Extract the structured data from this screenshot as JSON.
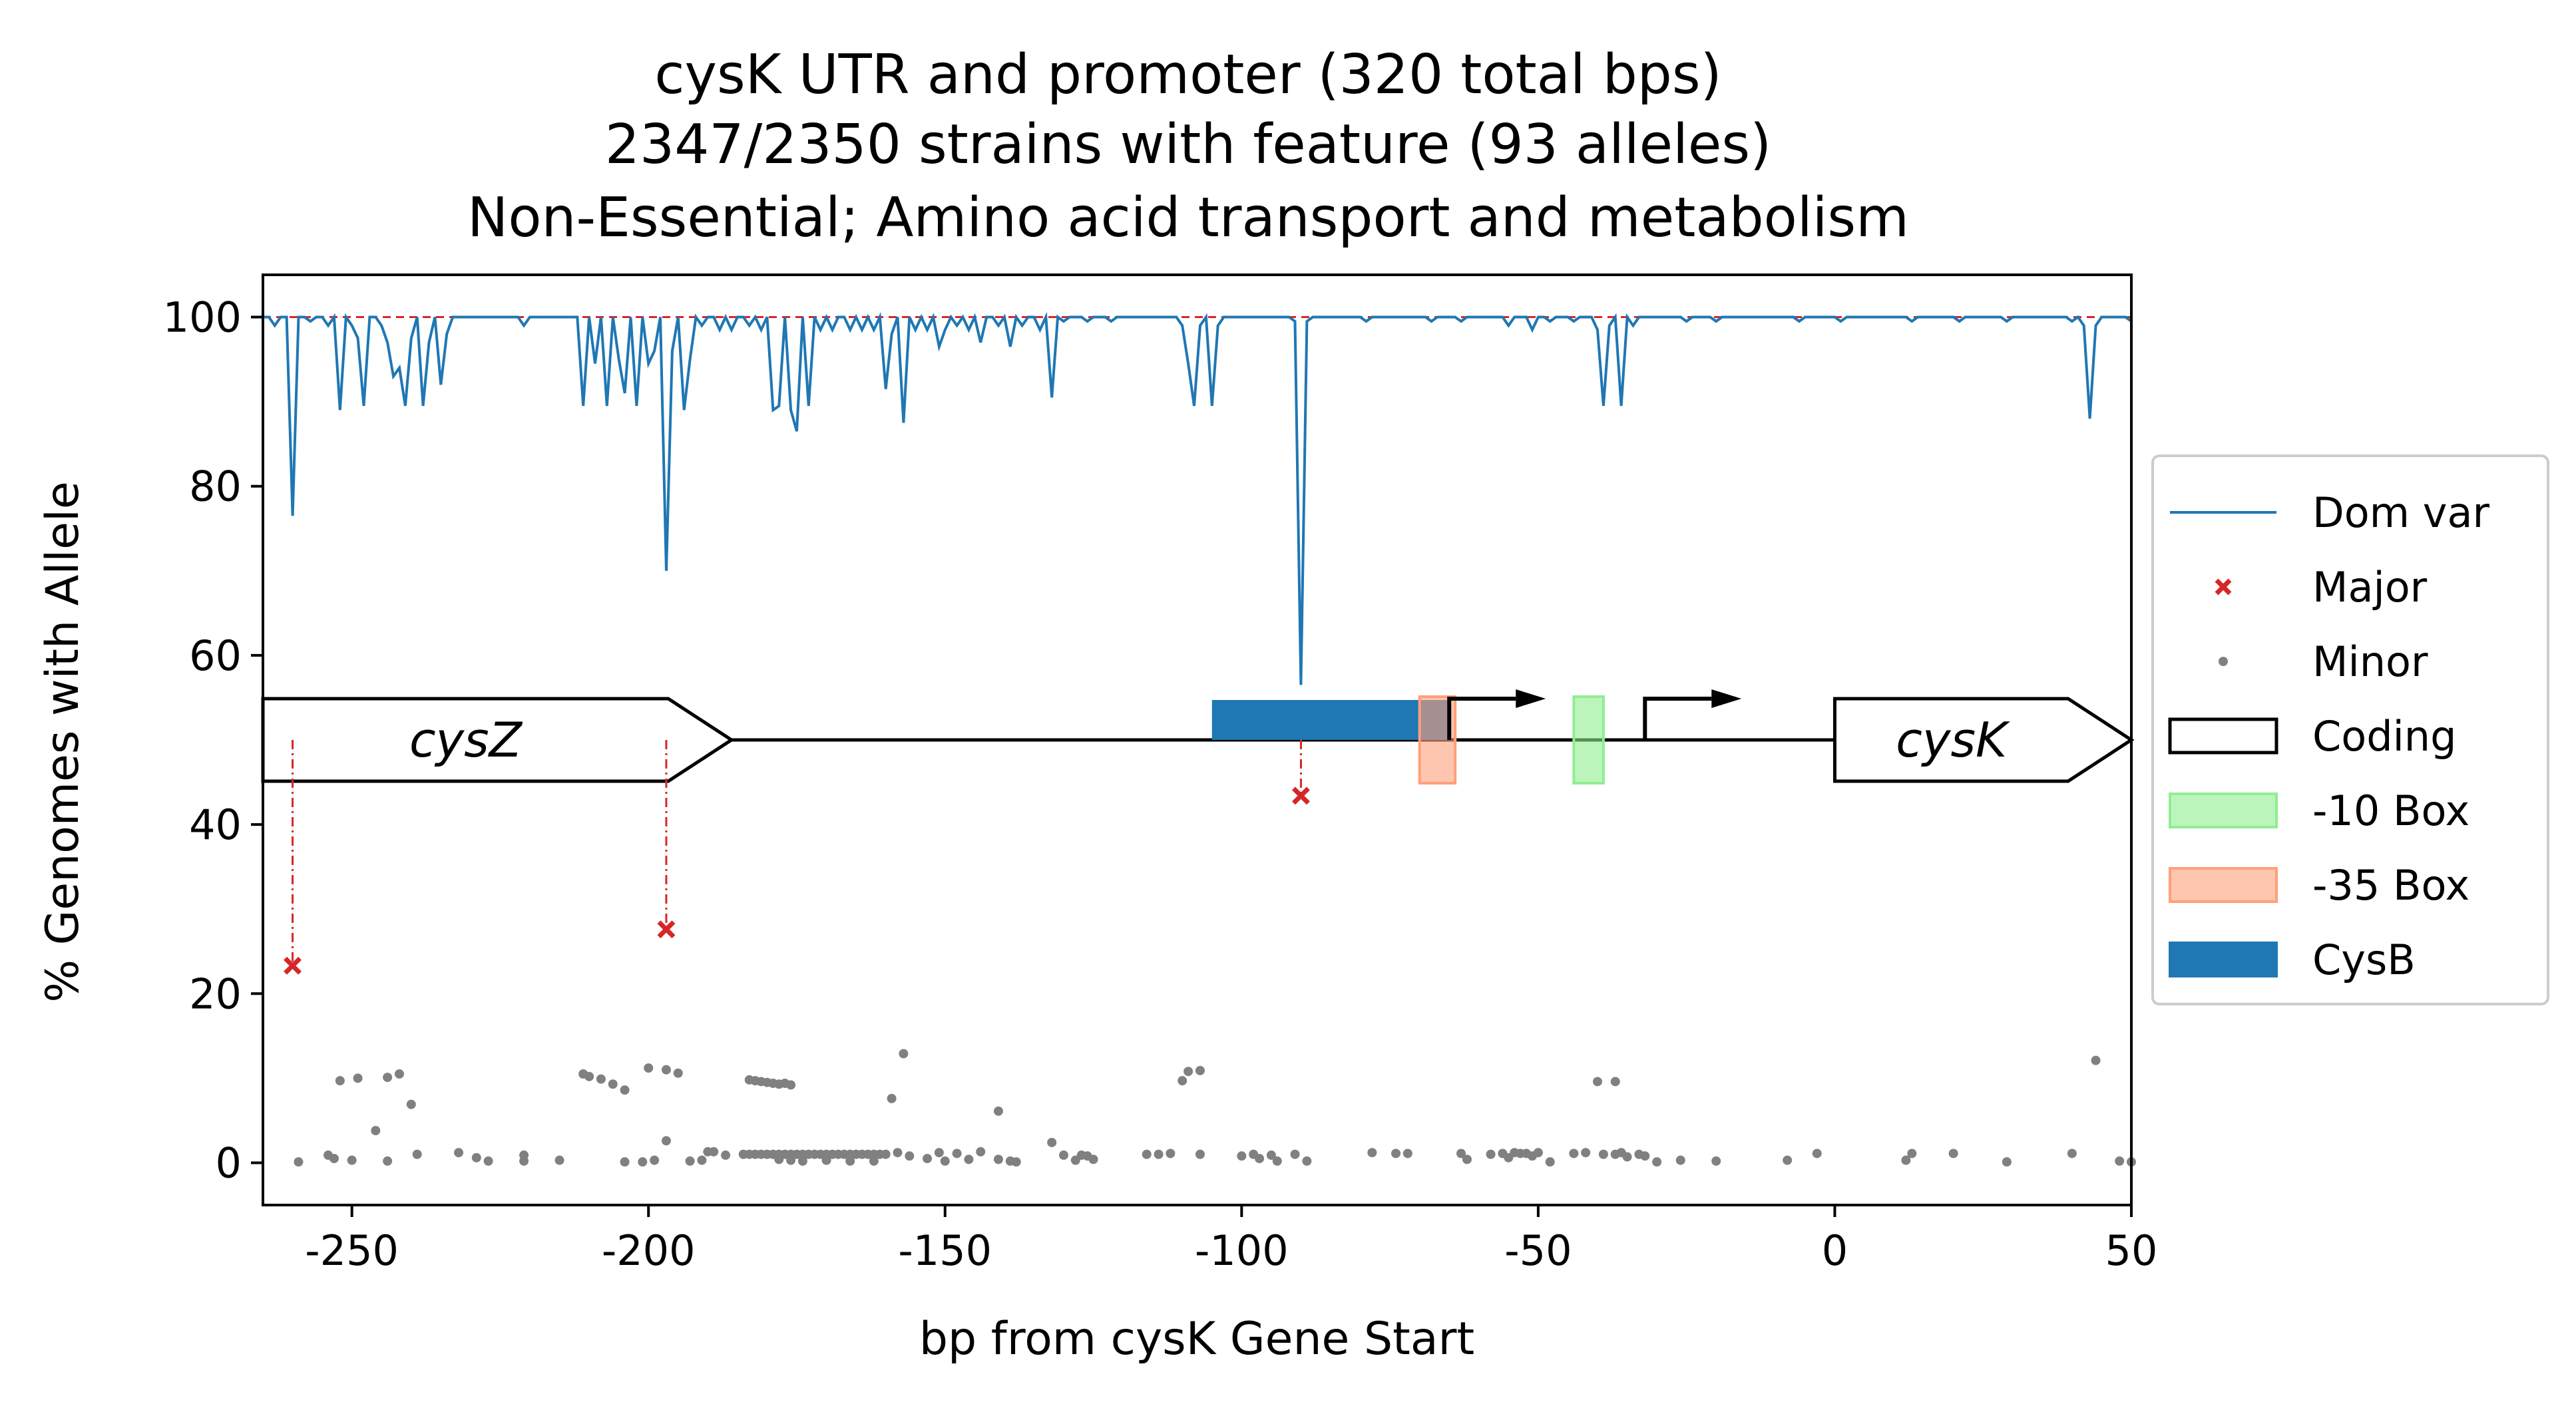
{
  "chart_data": {
    "type": "line",
    "title_lines": [
      "cysK UTR and promoter (320 total bps)",
      "2347/2350 strains with feature (93 alleles)",
      "Non-Essential; Amino acid transport and metabolism"
    ],
    "xlabel": "bp from cysK Gene Start",
    "ylabel": "% Genomes with Allele",
    "xlim": [
      -265,
      50
    ],
    "ylim": [
      -5,
      105
    ],
    "xticks": [
      -250,
      -200,
      -150,
      -100,
      -50,
      0,
      50
    ],
    "yticks": [
      0,
      20,
      40,
      60,
      80,
      100
    ],
    "grid": false,
    "legend": {
      "position": "right",
      "items": [
        {
          "label": "Dom var",
          "kind": "line",
          "color": "#1f77b4"
        },
        {
          "label": "Major",
          "kind": "x-marker",
          "color": "#d62728"
        },
        {
          "label": "Minor",
          "kind": "dot",
          "color": "#808080"
        },
        {
          "label": "Coding",
          "kind": "box",
          "color": "#000000"
        },
        {
          "label": "-10 Box",
          "kind": "patch",
          "color": "#90ee90"
        },
        {
          "label": "-35 Box",
          "kind": "patch",
          "color": "#ffa07a"
        },
        {
          "label": "CysB",
          "kind": "patch",
          "color": "#1f77b4"
        }
      ]
    },
    "dominant_variant": {
      "name": "Dom var",
      "color": "#1f77b4",
      "baseline": 100,
      "dips": [
        [
          -263,
          99
        ],
        [
          -260,
          76.5
        ],
        [
          -257,
          99.5
        ],
        [
          -254,
          99
        ],
        [
          -252,
          89
        ],
        [
          -250,
          99
        ],
        [
          -249,
          97.5
        ],
        [
          -248,
          89.5
        ],
        [
          -245,
          99
        ],
        [
          -244,
          97
        ],
        [
          -243,
          93
        ],
        [
          -242,
          94
        ],
        [
          -241,
          89.5
        ],
        [
          -240,
          97.5
        ],
        [
          -238,
          89.5
        ],
        [
          -237,
          97
        ],
        [
          -235,
          92
        ],
        [
          -234,
          98
        ],
        [
          -221,
          99
        ],
        [
          -211,
          89.5
        ],
        [
          -209,
          94.5
        ],
        [
          -207,
          89.5
        ],
        [
          -205,
          95
        ],
        [
          -204,
          91
        ],
        [
          -202,
          89.5
        ],
        [
          -200,
          94.5
        ],
        [
          -199,
          96
        ],
        [
          -197,
          70
        ],
        [
          -196,
          96
        ],
        [
          -194,
          89
        ],
        [
          -193,
          95
        ],
        [
          -191,
          99
        ],
        [
          -188,
          98.5
        ],
        [
          -186,
          98.5
        ],
        [
          -183,
          99
        ],
        [
          -181,
          98.5
        ],
        [
          -179,
          89
        ],
        [
          -178,
          89.5
        ],
        [
          -176,
          89
        ],
        [
          -175,
          86.5
        ],
        [
          -173,
          89.5
        ],
        [
          -171,
          98.5
        ],
        [
          -169,
          98.5
        ],
        [
          -166,
          98.5
        ],
        [
          -164,
          98.5
        ],
        [
          -162,
          98.5
        ],
        [
          -160,
          91.5
        ],
        [
          -159,
          98
        ],
        [
          -157,
          87.5
        ],
        [
          -155,
          98.5
        ],
        [
          -153,
          98.5
        ],
        [
          -151,
          96.5
        ],
        [
          -150,
          98.5
        ],
        [
          -148,
          99
        ],
        [
          -146,
          98.5
        ],
        [
          -144,
          97
        ],
        [
          -141,
          99
        ],
        [
          -139,
          96.5
        ],
        [
          -137,
          99
        ],
        [
          -134,
          98.5
        ],
        [
          -132,
          90.5
        ],
        [
          -130,
          99.5
        ],
        [
          -126,
          99.5
        ],
        [
          -122,
          99.5
        ],
        [
          -110,
          99
        ],
        [
          -109,
          94.5
        ],
        [
          -108,
          89.5
        ],
        [
          -107,
          99
        ],
        [
          -105,
          89.5
        ],
        [
          -104,
          99
        ],
        [
          -91,
          99.5
        ],
        [
          -90,
          56.5
        ],
        [
          -89,
          99.5
        ],
        [
          -79,
          99.5
        ],
        [
          -68,
          99.5
        ],
        [
          -63,
          99.5
        ],
        [
          -55,
          99
        ],
        [
          -51,
          98.5
        ],
        [
          -48,
          99.5
        ],
        [
          -44,
          99.5
        ],
        [
          -40,
          98.5
        ],
        [
          -39,
          89.5
        ],
        [
          -38,
          99
        ],
        [
          -36,
          89.5
        ],
        [
          -34,
          99
        ],
        [
          -25,
          99.5
        ],
        [
          -20,
          99.5
        ],
        [
          -6,
          99.5
        ],
        [
          1,
          99.5
        ],
        [
          13,
          99.5
        ],
        [
          21,
          99.5
        ],
        [
          29,
          99.5
        ],
        [
          40,
          99.5
        ],
        [
          42,
          99
        ],
        [
          43,
          88
        ],
        [
          44,
          99
        ],
        [
          50,
          99.5
        ]
      ]
    },
    "major_alleles": {
      "name": "Major",
      "color": "#d62728",
      "points": [
        [
          -260,
          23.3
        ],
        [
          -197,
          27.6
        ],
        [
          -90,
          43.4
        ]
      ]
    },
    "minor_alleles": {
      "name": "Minor",
      "color": "#808080",
      "points": [
        [
          -259,
          0.1
        ],
        [
          -254,
          0.9
        ],
        [
          -253,
          0.5
        ],
        [
          -252,
          9.7
        ],
        [
          -250,
          0.3
        ],
        [
          -249,
          10
        ],
        [
          -246,
          3.8
        ],
        [
          -244,
          10.1
        ],
        [
          -244,
          0.2
        ],
        [
          -242,
          10.5
        ],
        [
          -240,
          6.9
        ],
        [
          -239,
          1
        ],
        [
          -232,
          1.2
        ],
        [
          -229,
          0.6
        ],
        [
          -227,
          0.2
        ],
        [
          -221,
          0.9
        ],
        [
          -221,
          0.2
        ],
        [
          -215,
          0.3
        ],
        [
          -211,
          10.5
        ],
        [
          -210,
          10.2
        ],
        [
          -208,
          9.9
        ],
        [
          -206,
          9.3
        ],
        [
          -204,
          8.6
        ],
        [
          -204,
          0.1
        ],
        [
          -201,
          0.1
        ],
        [
          -200,
          11.2
        ],
        [
          -199,
          0.3
        ],
        [
          -197,
          2.6
        ],
        [
          -197,
          11
        ],
        [
          -195,
          10.6
        ],
        [
          -193,
          0.2
        ],
        [
          -191,
          0.3
        ],
        [
          -190,
          1.3
        ],
        [
          -189,
          1.3
        ],
        [
          -187,
          0.9
        ],
        [
          -184,
          1
        ],
        [
          -183,
          9.8
        ],
        [
          -182,
          9.7
        ],
        [
          -181,
          9.6
        ],
        [
          -180,
          9.5
        ],
        [
          -179,
          9.4
        ],
        [
          -178,
          9.3
        ],
        [
          -177,
          9.4
        ],
        [
          -176,
          9.2
        ],
        [
          -183,
          1
        ],
        [
          -182,
          1
        ],
        [
          -181,
          1
        ],
        [
          -180,
          1
        ],
        [
          -179,
          1
        ],
        [
          -178,
          1
        ],
        [
          -177,
          1
        ],
        [
          -176,
          1
        ],
        [
          -175,
          1
        ],
        [
          -174,
          1
        ],
        [
          -173,
          1
        ],
        [
          -172,
          1
        ],
        [
          -171,
          1
        ],
        [
          -170,
          1
        ],
        [
          -169,
          1
        ],
        [
          -168,
          1
        ],
        [
          -167,
          1
        ],
        [
          -166,
          1
        ],
        [
          -165,
          1
        ],
        [
          -164,
          1
        ],
        [
          -163,
          1
        ],
        [
          -162,
          1
        ],
        [
          -161,
          1
        ],
        [
          -160,
          1
        ],
        [
          -178,
          0.4
        ],
        [
          -176,
          0.3
        ],
        [
          -174,
          0.2
        ],
        [
          -170,
          0.3
        ],
        [
          -166,
          0.2
        ],
        [
          -162,
          0.2
        ],
        [
          -159,
          7.6
        ],
        [
          -157,
          12.9
        ],
        [
          -158,
          1.2
        ],
        [
          -156,
          0.8
        ],
        [
          -153,
          0.5
        ],
        [
          -151,
          1.2
        ],
        [
          -150,
          0.2
        ],
        [
          -148,
          1.1
        ],
        [
          -146,
          0.4
        ],
        [
          -144,
          1.3
        ],
        [
          -141,
          0.4
        ],
        [
          -141,
          6.1
        ],
        [
          -139,
          0.2
        ],
        [
          -138,
          0.1
        ],
        [
          -132,
          2.4
        ],
        [
          -130,
          0.9
        ],
        [
          -128,
          0.3
        ],
        [
          -127,
          0.9
        ],
        [
          -126,
          0.8
        ],
        [
          -125,
          0.4
        ],
        [
          -116,
          1
        ],
        [
          -114,
          1
        ],
        [
          -112,
          1.1
        ],
        [
          -110,
          9.7
        ],
        [
          -109,
          10.8
        ],
        [
          -107,
          10.9
        ],
        [
          -107,
          1
        ],
        [
          -100,
          0.8
        ],
        [
          -98,
          1
        ],
        [
          -97,
          0.5
        ],
        [
          -95,
          0.9
        ],
        [
          -94,
          0.2
        ],
        [
          -91,
          1
        ],
        [
          -89,
          0.2
        ],
        [
          -78,
          1.2
        ],
        [
          -74,
          1.1
        ],
        [
          -72,
          1.1
        ],
        [
          -63,
          1.1
        ],
        [
          -62,
          0.4
        ],
        [
          -58,
          1
        ],
        [
          -56,
          1.1
        ],
        [
          -55,
          0.6
        ],
        [
          -54,
          1.2
        ],
        [
          -53,
          1.1
        ],
        [
          -52,
          1.1
        ],
        [
          -51,
          0.8
        ],
        [
          -50,
          1.2
        ],
        [
          -48,
          0.1
        ],
        [
          -44,
          1.1
        ],
        [
          -42,
          1.2
        ],
        [
          -40,
          9.6
        ],
        [
          -37,
          9.6
        ],
        [
          -39,
          1
        ],
        [
          -37,
          1
        ],
        [
          -36,
          1.2
        ],
        [
          -35,
          0.7
        ],
        [
          -33,
          1
        ],
        [
          -32,
          0.8
        ],
        [
          -30,
          0.1
        ],
        [
          -26,
          0.3
        ],
        [
          -20,
          0.2
        ],
        [
          -8,
          0.3
        ],
        [
          -3,
          1.1
        ],
        [
          12,
          0.3
        ],
        [
          13,
          1.1
        ],
        [
          20,
          1.1
        ],
        [
          29,
          0.1
        ],
        [
          40,
          1.1
        ],
        [
          44,
          12.1
        ],
        [
          48,
          0.2
        ],
        [
          50,
          0.1
        ]
      ]
    },
    "annotations": {
      "backbone_y": 50,
      "coding": [
        {
          "name": "cysZ",
          "start": -265,
          "end": -186
        },
        {
          "name": "cysK",
          "start": 0,
          "end": 50
        }
      ],
      "cysb_box": {
        "label": "CysB",
        "start": -105,
        "end": -65
      },
      "minus35_box": {
        "label": "-35 Box",
        "start": -70,
        "end": -64
      },
      "minus10_box": {
        "label": "-10 Box",
        "start": -44,
        "end": -39
      },
      "tss_arrows": [
        -65,
        -32
      ]
    }
  }
}
